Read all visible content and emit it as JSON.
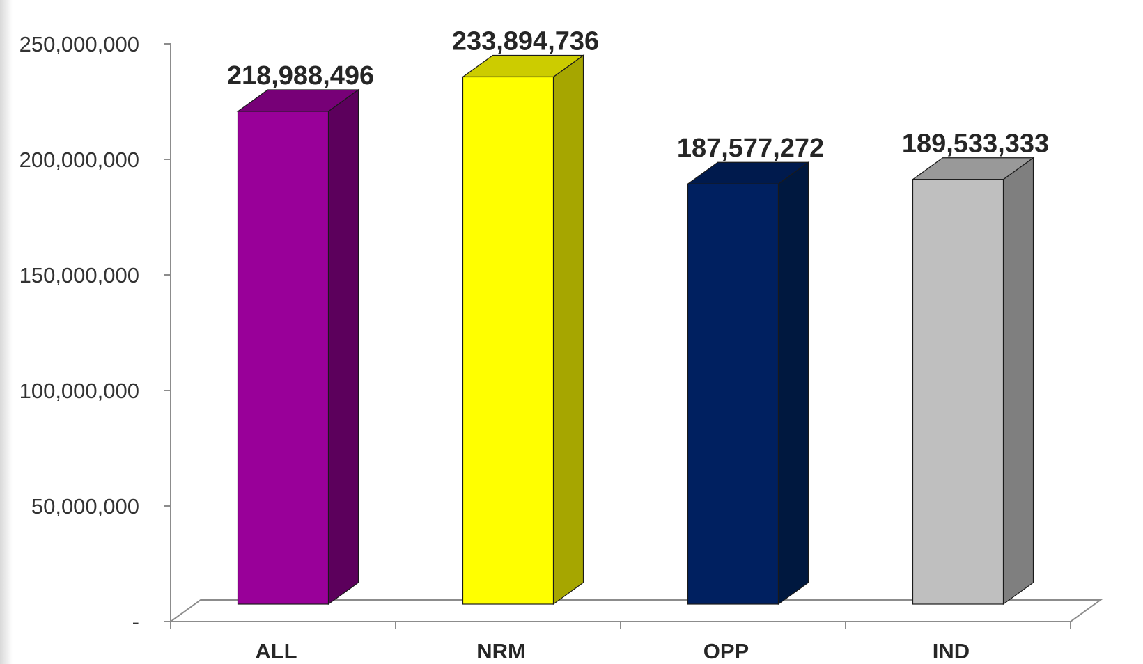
{
  "chart_data": {
    "type": "bar",
    "title": "",
    "xlabel": "",
    "ylabel": "",
    "categories": [
      "ALL",
      "NRM",
      "OPP",
      "IND"
    ],
    "values": [
      218988496,
      233894736,
      187577272,
      189533333
    ],
    "data_labels": [
      "218,988,496",
      "233,894,736",
      "187,577,272",
      "189,533,333"
    ],
    "ylim": [
      0,
      250000000
    ],
    "y_ticks": [
      0,
      50000000,
      100000000,
      150000000,
      200000000,
      250000000
    ],
    "y_tick_labels": [
      "-",
      "50,000,000",
      "100,000,000",
      "150,000,000",
      "200,000,000",
      "250,000,000"
    ],
    "legend": "none",
    "grid": false,
    "style": "3d",
    "colors": {
      "ALL": {
        "front": "#990099",
        "side": "#5c005c",
        "top": "#770077"
      },
      "NRM": {
        "front": "#ffff00",
        "side": "#a6a600",
        "top": "#cccc00"
      },
      "OPP": {
        "front": "#002060",
        "side": "#00183f",
        "top": "#001a4d"
      },
      "IND": {
        "front": "#bfbfbf",
        "side": "#7f7f7f",
        "top": "#999999"
      }
    }
  }
}
